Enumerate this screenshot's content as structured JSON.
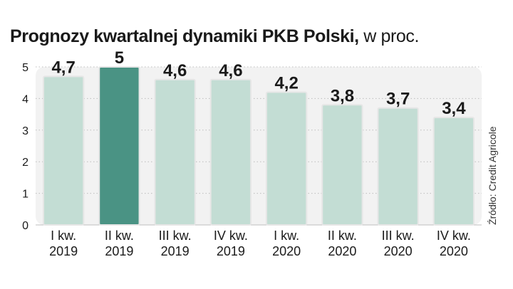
{
  "title": {
    "main": "Prognozy kwartalnej dynamiki PKB Polski,",
    "unit": " w proc."
  },
  "source": "Źródło: Credit Agricole",
  "colors": {
    "bar": "#c3ddd4",
    "bar_stroke": "#e6e6e6",
    "bar_highlight": "#4a9384",
    "plot_bg": "#f2f2f2",
    "grid": "#bdbdbd",
    "text": "#1a1a1a"
  },
  "chart_data": {
    "type": "bar",
    "categories": [
      [
        "I kw.",
        "2019"
      ],
      [
        "II kw.",
        "2019"
      ],
      [
        "III kw.",
        "2019"
      ],
      [
        "IV kw.",
        "2019"
      ],
      [
        "I kw.",
        "2020"
      ],
      [
        "II kw.",
        "2020"
      ],
      [
        "III kw.",
        "2020"
      ],
      [
        "IV kw.",
        "2020"
      ]
    ],
    "values": [
      4.7,
      5,
      4.6,
      4.6,
      4.2,
      3.8,
      3.7,
      3.4
    ],
    "value_labels": [
      "4,7",
      "5",
      "4,6",
      "4,6",
      "4,2",
      "3,8",
      "3,7",
      "3,4"
    ],
    "highlight_index": 1,
    "ylim": [
      0,
      5
    ],
    "yticks": [
      0,
      1,
      2,
      3,
      4,
      5
    ],
    "grid": true
  }
}
